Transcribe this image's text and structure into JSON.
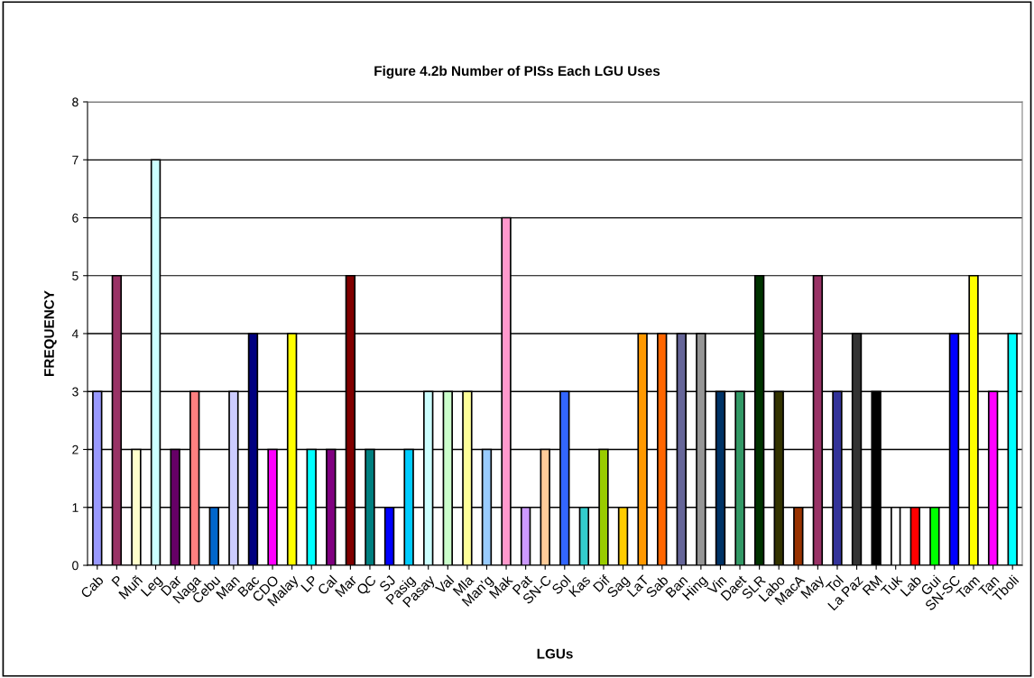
{
  "chart_data": {
    "type": "bar",
    "title": "Figure 4.2b Number of PISs Each LGU Uses",
    "xlabel": "LGUs",
    "ylabel": "FREQUENCY",
    "categories": [
      "Cab",
      "P",
      "Muñ",
      "Leg",
      "Dar",
      "Naga",
      "Cebu",
      "Man",
      "Bac",
      "CDO",
      "Malay",
      "LP",
      "Cal",
      "Mar",
      "QC",
      "SJ",
      "Pasig",
      "Pasay",
      "Val",
      "Mla",
      "Man'g",
      "Mak",
      "Pat",
      "SN-C",
      "Sol",
      "Kas",
      "Dif",
      "Sag",
      "LaT",
      "Sab",
      "Ban",
      "Hing",
      "Vin",
      "Daet",
      "SLR",
      "Labo",
      "MacA",
      "May",
      "Tol",
      "La Paz",
      "RM",
      "Tuk",
      "Lab",
      "Gui",
      "SN-SC",
      "Tam",
      "Tan",
      "Tboli"
    ],
    "values": [
      3,
      5,
      2,
      7,
      2,
      3,
      1,
      3,
      4,
      2,
      4,
      2,
      2,
      5,
      2,
      1,
      2,
      3,
      3,
      3,
      2,
      6,
      1,
      2,
      3,
      1,
      2,
      1,
      4,
      4,
      4,
      4,
      3,
      3,
      5,
      3,
      1,
      5,
      3,
      4,
      3,
      1,
      1,
      1,
      4,
      5,
      3,
      4
    ],
    "colors": [
      "#9999ff",
      "#993366",
      "#ffffcc",
      "#ccffff",
      "#660066",
      "#ff8080",
      "#0066cc",
      "#ccccff",
      "#000080",
      "#ff00ff",
      "#ffff00",
      "#00ffff",
      "#800080",
      "#800000",
      "#008080",
      "#0000ff",
      "#00ccff",
      "#ccffff",
      "#ccffcc",
      "#ffff99",
      "#99ccff",
      "#ff99cc",
      "#cc99ff",
      "#ffcc99",
      "#3366ff",
      "#33cccc",
      "#99cc00",
      "#ffcc00",
      "#ff9900",
      "#ff6600",
      "#666699",
      "#969696",
      "#003366",
      "#339966",
      "#003300",
      "#333300",
      "#993300",
      "#993366",
      "#333399",
      "#333333",
      "#000000",
      "#ffffff",
      "#ff0000",
      "#00ff00",
      "#0000ff",
      "#ffff00",
      "#ff00ff",
      "#00ffff"
    ],
    "ylim": [
      0,
      8
    ],
    "yticks": [
      0,
      1,
      2,
      3,
      4,
      5,
      6,
      7,
      8
    ],
    "grid": "y",
    "legend": false
  }
}
